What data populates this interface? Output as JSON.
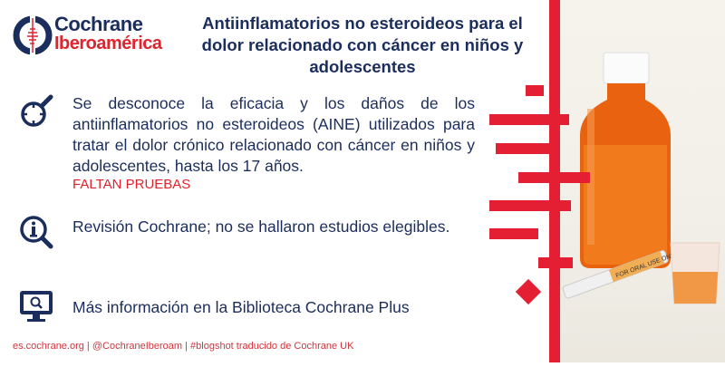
{
  "brand": {
    "line1": "Cochrane",
    "line2": "Iberoamérica"
  },
  "title": "Antiinflamatorios no esteroideos para el dolor relacionado con cáncer en niños y adolescentes",
  "findings": {
    "text": "Se desconoce la eficacia y los daños de los antiinflamatorios no esteroideos (AINE) utilizados para tratar el dolor crónico relacionado con cáncer en niños y adolescentes, hasta los 17 años.",
    "alert": "FALTAN PRUEBAS"
  },
  "review": "Revisión Cochrane; no se hallaron estudios elegibles.",
  "more_info": "Más información en la Biblioteca Cochrane Plus",
  "footer": "es.cochrane.org | @CochraneIberoam | #blogshot traducido de Cochrane UK",
  "photo": {
    "syringe_label": "FOR ORAL USE ONLY"
  },
  "colors": {
    "navy": "#1b2d5c",
    "red": "#e41e33"
  }
}
